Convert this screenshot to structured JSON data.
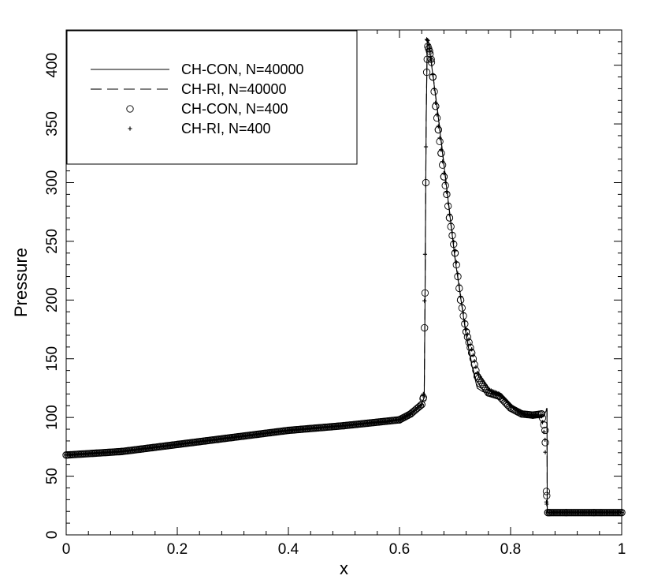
{
  "chart_data": {
    "type": "line",
    "title": "",
    "xlabel": "x",
    "ylabel": "Pressure",
    "xlim": [
      0,
      1
    ],
    "ylim": [
      0,
      430
    ],
    "grid": false,
    "legend_position": "top-left",
    "x_ticks": [
      0,
      0.2,
      0.4,
      0.6,
      0.8,
      1
    ],
    "x_tick_labels": [
      "0",
      "0.2",
      "0.4",
      "0.6",
      "0.8",
      "1"
    ],
    "y_ticks": [
      0,
      50,
      100,
      150,
      200,
      250,
      300,
      350,
      400
    ],
    "y_tick_labels": [
      "0",
      "50",
      "100",
      "150",
      "200",
      "250",
      "300",
      "350",
      "400"
    ],
    "series": [
      {
        "name": "CH-CON, N=40000",
        "style": "solid-line",
        "x": [
          0,
          0.05,
          0.1,
          0.2,
          0.3,
          0.4,
          0.5,
          0.58,
          0.6,
          0.62,
          0.64,
          0.6445,
          0.646,
          0.648,
          0.65,
          0.652,
          0.655,
          0.66,
          0.67,
          0.68,
          0.69,
          0.7,
          0.72,
          0.73,
          0.74,
          0.75,
          0.76,
          0.77,
          0.78,
          0.79,
          0.8,
          0.81,
          0.82,
          0.84,
          0.85,
          0.86,
          0.8655,
          0.866,
          0.867,
          0.87,
          0.9,
          0.95,
          1
        ],
        "y": [
          68,
          69,
          71,
          77,
          83,
          89,
          93,
          96,
          98,
          104,
          112,
          117,
          200,
          350,
          420,
          420,
          410,
          392,
          355,
          315,
          275,
          235,
          170,
          145,
          125,
          122,
          121,
          120,
          118,
          115,
          110,
          105,
          102,
          100,
          100,
          102,
          107,
          19,
          19,
          19,
          19,
          19,
          19
        ]
      },
      {
        "name": "CH-RI, N=40000",
        "style": "dashed-line",
        "x": [
          0,
          0.05,
          0.1,
          0.2,
          0.3,
          0.4,
          0.5,
          0.58,
          0.6,
          0.62,
          0.64,
          0.6445,
          0.646,
          0.648,
          0.65,
          0.652,
          0.655,
          0.66,
          0.67,
          0.68,
          0.69,
          0.7,
          0.72,
          0.73,
          0.74,
          0.75,
          0.76,
          0.77,
          0.78,
          0.79,
          0.8,
          0.81,
          0.82,
          0.84,
          0.85,
          0.86,
          0.8655,
          0.866,
          0.867,
          0.87,
          0.9,
          0.95,
          1
        ],
        "y": [
          68,
          69,
          71,
          77,
          83,
          89,
          93,
          96,
          98,
          104,
          112,
          117,
          205,
          355,
          422,
          421,
          412,
          393,
          356,
          316,
          276,
          236,
          171,
          146,
          127,
          124,
          122,
          121,
          119,
          116,
          111,
          106,
          103,
          101,
          101,
          103,
          108,
          19,
          19,
          19,
          19,
          19,
          19
        ]
      },
      {
        "name": "CH-CON, N=400",
        "style": "circle-markers",
        "x": [
          0,
          0.1,
          0.2,
          0.3,
          0.4,
          0.5,
          0.6,
          0.62,
          0.64,
          0.643,
          0.646,
          0.649,
          0.651,
          0.654,
          0.657,
          0.66,
          0.665,
          0.67,
          0.675,
          0.68,
          0.685,
          0.69,
          0.7,
          0.71,
          0.72,
          0.73,
          0.74,
          0.76,
          0.78,
          0.8,
          0.82,
          0.84,
          0.856,
          0.862,
          0.8645,
          0.867,
          0.87,
          0.9,
          0.95,
          1
        ],
        "y": [
          68,
          71,
          77,
          83,
          89,
          93,
          98,
          103,
          111,
          117,
          206,
          394,
          416,
          412,
          405,
          390,
          365,
          345,
          325,
          305,
          290,
          270,
          240,
          200,
          173,
          155,
          135,
          121,
          118,
          108,
          103,
          102,
          103,
          89,
          37,
          19,
          19,
          19,
          19,
          19
        ]
      },
      {
        "name": "CH-RI, N=400",
        "style": "plus-markers",
        "x": [
          0,
          0.1,
          0.2,
          0.3,
          0.4,
          0.5,
          0.6,
          0.62,
          0.64,
          0.643,
          0.646,
          0.649,
          0.651,
          0.654,
          0.657,
          0.66,
          0.665,
          0.67,
          0.675,
          0.68,
          0.685,
          0.69,
          0.7,
          0.71,
          0.72,
          0.73,
          0.74,
          0.76,
          0.78,
          0.8,
          0.82,
          0.84,
          0.856,
          0.862,
          0.8645,
          0.867,
          0.87,
          0.9,
          0.95,
          1
        ],
        "y": [
          68,
          71,
          77,
          83,
          89,
          93,
          98,
          103,
          111,
          120,
          239,
          422,
          421,
          414,
          406,
          392,
          368,
          348,
          328,
          308,
          292,
          273,
          242,
          203,
          175,
          158,
          138,
          124,
          120,
          110,
          104,
          101,
          101,
          81,
          28,
          19,
          19,
          19,
          19,
          19
        ]
      }
    ]
  }
}
